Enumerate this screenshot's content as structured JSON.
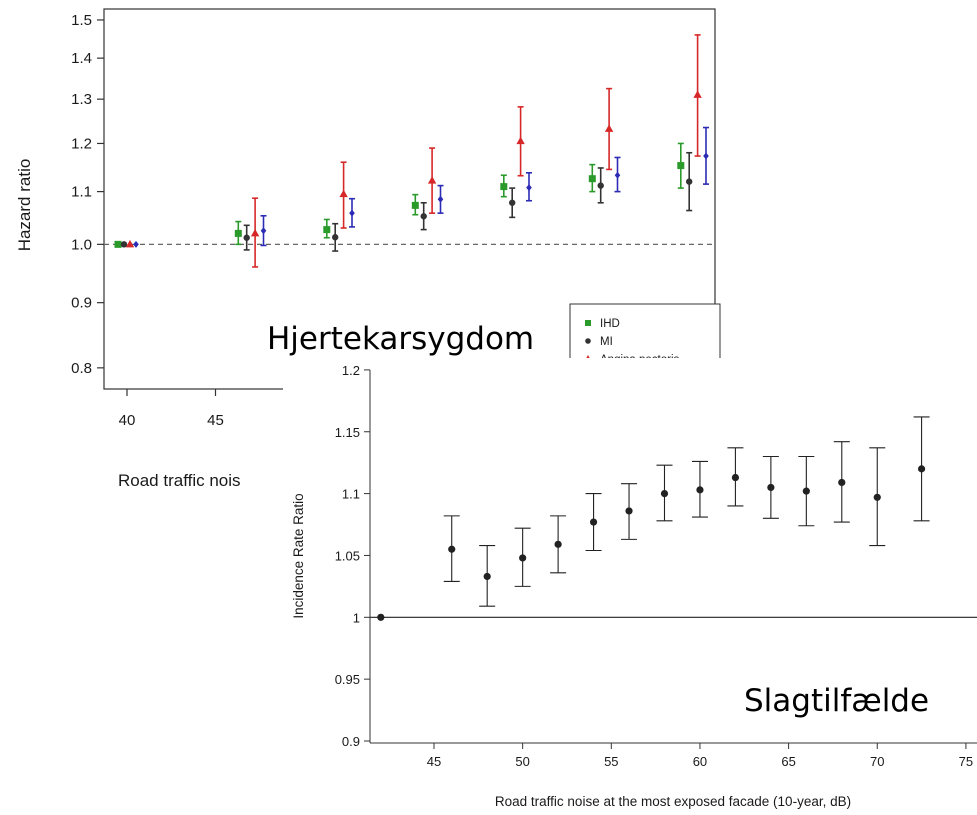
{
  "annotations": {
    "top_label": "Hjertekarsygdom",
    "bottom_label": "Slagtilfælde"
  },
  "chart_data": [
    {
      "type": "scatter",
      "subtype": "point-with-error-bars",
      "ylabel": "Hazard ratio",
      "xlabel": "Road traffic nois",
      "x_ticks": [
        "40",
        "45"
      ],
      "y_ticks": [
        "0.8",
        "0.9",
        "1.0",
        "1.1",
        "1.2",
        "1.3",
        "1.4",
        "1.5"
      ],
      "ylim": [
        0.77,
        1.53
      ],
      "y_scale": "log",
      "reference_line": 1.0,
      "legend_position": "bottom-right",
      "categories": [
        "40",
        "47",
        "52",
        "57",
        "62",
        "67",
        "72"
      ],
      "series": [
        {
          "name": "IHD",
          "color": "#2a9a2a",
          "marker": "square",
          "values": [
            1.0,
            1.02,
            1.027,
            1.073,
            1.11,
            1.126,
            1.153
          ],
          "lower": [
            1.0,
            1.0,
            1.012,
            1.055,
            1.09,
            1.1,
            1.107
          ],
          "upper": [
            1.0,
            1.042,
            1.046,
            1.094,
            1.133,
            1.155,
            1.2
          ]
        },
        {
          "name": "MI",
          "color": "#333333",
          "marker": "circle",
          "values": [
            1.0,
            1.012,
            1.013,
            1.052,
            1.078,
            1.112,
            1.12
          ],
          "lower": [
            1.0,
            0.99,
            0.988,
            1.027,
            1.05,
            1.078,
            1.063
          ],
          "upper": [
            1.0,
            1.035,
            1.038,
            1.078,
            1.107,
            1.148,
            1.18
          ]
        },
        {
          "name": "Angina pectoris",
          "color": "#d62828",
          "marker": "triangle",
          "values": [
            1.0,
            1.02,
            1.095,
            1.122,
            1.205,
            1.232,
            1.31
          ],
          "lower": [
            1.0,
            0.96,
            1.03,
            1.058,
            1.132,
            1.145,
            1.173
          ],
          "upper": [
            1.0,
            1.087,
            1.16,
            1.19,
            1.282,
            1.325,
            1.46
          ]
        },
        {
          "name": "",
          "color": "#2b2bb5",
          "marker": "diamond",
          "values": [
            1.0,
            1.025,
            1.058,
            1.085,
            1.108,
            1.133,
            1.173
          ],
          "lower": [
            1.0,
            0.998,
            1.032,
            1.058,
            1.082,
            1.1,
            1.115
          ],
          "upper": [
            1.0,
            1.053,
            1.086,
            1.112,
            1.138,
            1.17,
            1.235
          ]
        }
      ]
    },
    {
      "type": "scatter",
      "subtype": "point-with-error-bars",
      "xlabel": "Road traffic noise at the most exposed facade (10-year, dB)",
      "ylabel": "Incidence Rate Ratio",
      "x_ticks": [
        "45",
        "50",
        "55",
        "60",
        "65",
        "70",
        "75"
      ],
      "y_ticks": [
        "0.9",
        "0.95",
        "1",
        "1.05",
        "1.1",
        "1.15",
        "1.2"
      ],
      "xlim": [
        41.5,
        76
      ],
      "ylim": [
        0.892,
        1.205
      ],
      "reference_line": 1.0,
      "series": [
        {
          "name": "",
          "x": [
            42,
            46,
            48,
            50,
            52,
            54,
            56,
            58,
            60,
            62,
            64,
            66,
            68,
            70,
            72.5
          ],
          "y": [
            1.0,
            1.055,
            1.033,
            1.048,
            1.059,
            1.077,
            1.086,
            1.1,
            1.103,
            1.113,
            1.105,
            1.102,
            1.109,
            1.097,
            1.12
          ],
          "lower": [
            null,
            1.029,
            1.009,
            1.025,
            1.036,
            1.054,
            1.063,
            1.078,
            1.081,
            1.09,
            1.08,
            1.074,
            1.077,
            1.058,
            1.078
          ],
          "upper": [
            null,
            1.082,
            1.058,
            1.072,
            1.082,
            1.1,
            1.108,
            1.123,
            1.126,
            1.137,
            1.13,
            1.13,
            1.142,
            1.137,
            1.162
          ]
        }
      ]
    }
  ]
}
